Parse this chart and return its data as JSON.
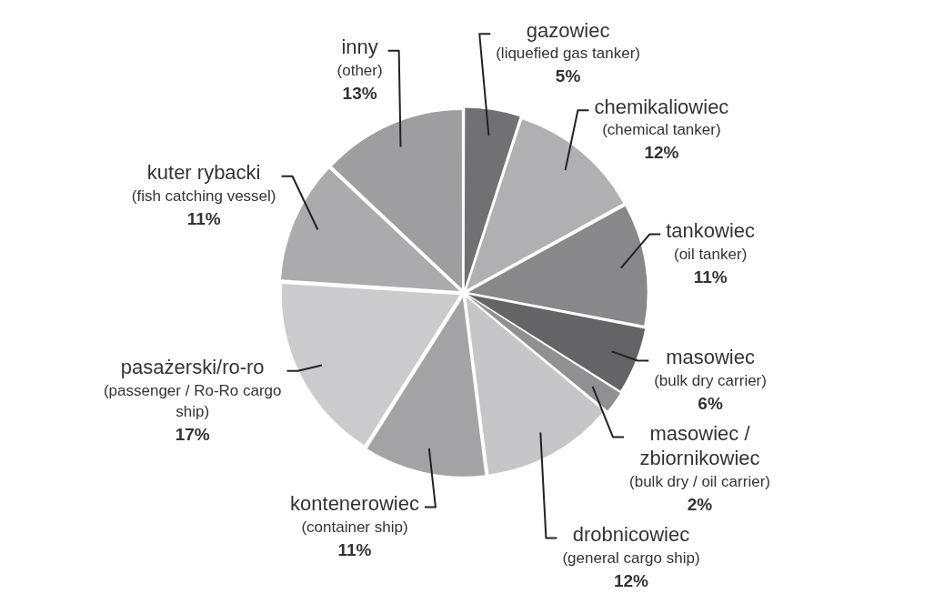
{
  "chart_data": {
    "type": "pie",
    "categories": [
      "gazowiec (liquefied gas tanker)",
      "chemikaliowiec (chemical tanker)",
      "tankowiec (oil tanker)",
      "masowiec (bulk dry carrier)",
      "masowiec / zbiornikowiec (bulk dry / oil carrier)",
      "drobnicowiec (general cargo ship)",
      "kontenerowiec (container ship)",
      "pasażerski/ro-ro (passenger / Ro-Ro cargo ship)",
      "kuter rybacki (fish catching vessel)",
      "inny (other)"
    ],
    "values": [
      5,
      12,
      11,
      6,
      2,
      12,
      11,
      17,
      11,
      13
    ],
    "colors": [
      "#717174",
      "#b0b0b3",
      "#88888b",
      "#646467",
      "#909093",
      "#c6c6c9",
      "#a3a3a6",
      "#cbcbce",
      "#ababae",
      "#9e9ea1"
    ],
    "value_labels": [
      "5%",
      "12%",
      "11%",
      "6%",
      "2%",
      "12%",
      "11%",
      "17%",
      "11%",
      "13%"
    ],
    "legend": false
  }
}
